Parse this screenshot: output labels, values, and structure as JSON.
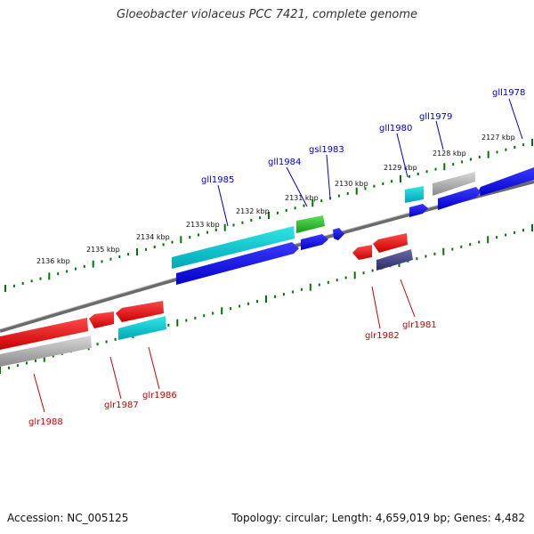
{
  "title": "Gloeobacter violaceus PCC 7421, complete genome",
  "footer": {
    "accession": "Accession: NC_005125",
    "summary": "Topology: circular; Length: 4,659,019 bp; Genes: 4,482"
  },
  "colors": {
    "plus_label": "#0000cc",
    "minus_label": "#cc0000",
    "tick": "#007700",
    "backbone": "#808080"
  },
  "kbp_labels": [
    "2127 kbp",
    "2128 kbp",
    "2129 kbp",
    "2130 kbp",
    "2131 kbp",
    "2132 kbp",
    "2133 kbp",
    "2134 kbp",
    "2135 kbp",
    "2136 kbp"
  ],
  "genes_plus": [
    "gll1978",
    "gll1979",
    "gll1980",
    "gsl1983",
    "gll1984",
    "gll1985"
  ],
  "genes_minus": [
    "glr1981",
    "glr1982",
    "glr1986",
    "glr1987",
    "glr1988"
  ]
}
